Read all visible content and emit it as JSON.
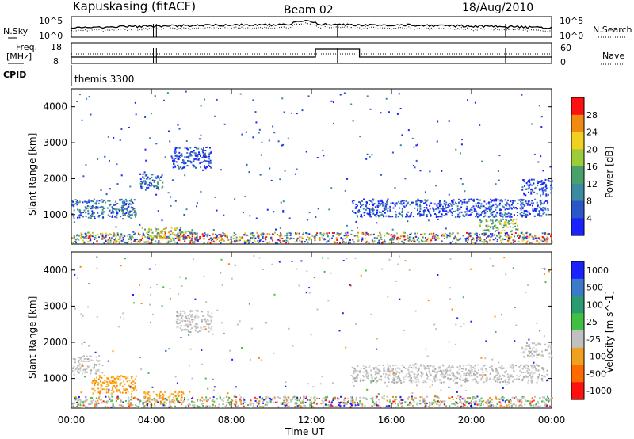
{
  "header": {
    "title": "Kapuskasing (fitACF)",
    "beam": "Beam 02",
    "date": "18/Aug/2010"
  },
  "colors": {
    "power": [
      "#1a23ff",
      "#2a56c8",
      "#3a8aa0",
      "#4aa06a",
      "#9ccc3a",
      "#f0d020",
      "#f08a10",
      "#ff1010"
    ],
    "velocity_pos": "#1a23ff",
    "velocity_ground": "#c0c0c0",
    "velocity_neg": "#ff8a00"
  },
  "noise_panel": {
    "left_label": "N.Sky",
    "right_label": "N.Search",
    "left_ticks": [
      "10^5",
      "10^0"
    ],
    "right_ticks": [
      "10^5",
      "10^0"
    ]
  },
  "freq_panel": {
    "left_label_1": "Freq.",
    "left_label_2": "[MHz]",
    "right_label": "Nave",
    "left_ticks": [
      "18",
      "8"
    ],
    "right_ticks": [
      "60",
      "0"
    ],
    "cpid_label": "CPID",
    "cpid_value": "themis 3300"
  },
  "chart_data": [
    {
      "type": "heatmap",
      "name": "power",
      "title": "",
      "ylabel": "Slant Range [km]",
      "xlabel": "",
      "ylim": [
        180,
        4500
      ],
      "y_ticks": [
        "4000",
        "3000",
        "2000",
        "1000"
      ],
      "colorbar_label": "Power [dB]",
      "colorbar_ticks": [
        "28",
        "24",
        "20",
        "16",
        "12",
        "8",
        "4"
      ],
      "bands": [
        {
          "from_ut": 0.0,
          "to_ut": 3.2,
          "range_min": 900,
          "range_max": 1450,
          "level": "blue-green"
        },
        {
          "from_ut": 3.4,
          "to_ut": 4.6,
          "range_min": 1700,
          "range_max": 2150,
          "level": "blue-green"
        },
        {
          "from_ut": 5.0,
          "to_ut": 7.0,
          "range_min": 2300,
          "range_max": 2900,
          "level": "blue"
        },
        {
          "from_ut": 3.5,
          "to_ut": 6.0,
          "range_min": 350,
          "range_max": 650,
          "level": "yellow-orange"
        },
        {
          "from_ut": 14.0,
          "to_ut": 23.8,
          "range_min": 950,
          "range_max": 1450,
          "level": "blue"
        },
        {
          "from_ut": 20.3,
          "to_ut": 22.3,
          "range_min": 550,
          "range_max": 900,
          "level": "green-yellow"
        },
        {
          "from_ut": 22.5,
          "to_ut": 24.0,
          "range_min": 1550,
          "range_max": 2000,
          "level": "blue"
        }
      ]
    },
    {
      "type": "heatmap",
      "name": "velocity",
      "title": "",
      "ylabel": "Slant Range [km]",
      "xlabel": "Time UT",
      "ylim": [
        180,
        4500
      ],
      "y_ticks": [
        "4000",
        "3000",
        "2000",
        "1000"
      ],
      "x_ticks": [
        "00:00",
        "04:00",
        "08:00",
        "12:00",
        "16:00",
        "20:00",
        "00:00"
      ],
      "colorbar_label": "Velocity [m s^-1]",
      "colorbar_ticks": [
        "1000",
        "500",
        "100",
        "25",
        "-25",
        "-100",
        "-500",
        "-1000"
      ],
      "bands": [
        {
          "from_ut": 0.0,
          "to_ut": 1.4,
          "range_min": 1150,
          "range_max": 1650,
          "level": "ground"
        },
        {
          "from_ut": 1.0,
          "to_ut": 3.2,
          "range_min": 600,
          "range_max": 1100,
          "level": "negative"
        },
        {
          "from_ut": 3.6,
          "to_ut": 5.6,
          "range_min": 350,
          "range_max": 650,
          "level": "negative"
        },
        {
          "from_ut": 5.2,
          "to_ut": 7.0,
          "range_min": 2300,
          "range_max": 2900,
          "level": "ground"
        },
        {
          "from_ut": 14.0,
          "to_ut": 23.8,
          "range_min": 900,
          "range_max": 1400,
          "level": "ground"
        },
        {
          "from_ut": 22.5,
          "to_ut": 24.0,
          "range_min": 1600,
          "range_max": 2000,
          "level": "ground"
        }
      ]
    }
  ]
}
